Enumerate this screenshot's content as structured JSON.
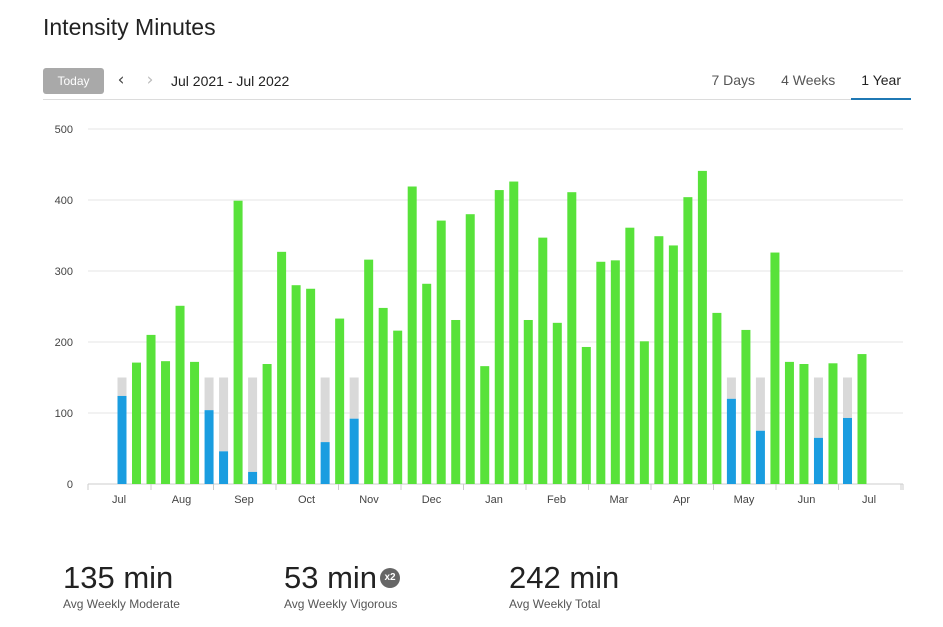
{
  "header": {
    "title": "Intensity Minutes"
  },
  "toolbar": {
    "today_label": "Today",
    "prev_icon": "‹",
    "next_icon": "›",
    "date_range": "Jul 2021 - Jul 2022",
    "tabs": [
      {
        "label": "7 Days",
        "active": false
      },
      {
        "label": "4 Weeks",
        "active": false
      },
      {
        "label": "1 Year",
        "active": true
      }
    ]
  },
  "colors": {
    "moderate_goal_met": "#58e23a",
    "below_goal": "#1a9de0",
    "goal_remainder": "#d9d9d9",
    "grid": "#e5e5e5",
    "axis": "#cccccc"
  },
  "chart_data": {
    "type": "bar",
    "ylim": [
      0,
      500
    ],
    "yticks": [
      0,
      100,
      200,
      300,
      400,
      500
    ],
    "goal": 150,
    "month_labels": [
      "Jul",
      "Aug",
      "Sep",
      "Oct",
      "Nov",
      "Dec",
      "Jan",
      "Feb",
      "Mar",
      "Apr",
      "May",
      "Jun",
      "Jul"
    ],
    "values": [
      124,
      171,
      210,
      173,
      251,
      172,
      104,
      46,
      399,
      17,
      169,
      327,
      280,
      275,
      59,
      233,
      92,
      316,
      248,
      216,
      419,
      282,
      371,
      231,
      380,
      166,
      414,
      426,
      231,
      347,
      227,
      411,
      193,
      313,
      315,
      361,
      201,
      349,
      336,
      404,
      441,
      241,
      120,
      217,
      75,
      326,
      172,
      169,
      65,
      170,
      93,
      183
    ]
  },
  "stats": [
    {
      "value": "135 min",
      "label": "Avg Weekly Moderate",
      "badge": ""
    },
    {
      "value": "53 min",
      "label": "Avg Weekly Vigorous",
      "badge": "x2"
    },
    {
      "value": "242 min",
      "label": "Avg Weekly Total",
      "badge": ""
    }
  ]
}
